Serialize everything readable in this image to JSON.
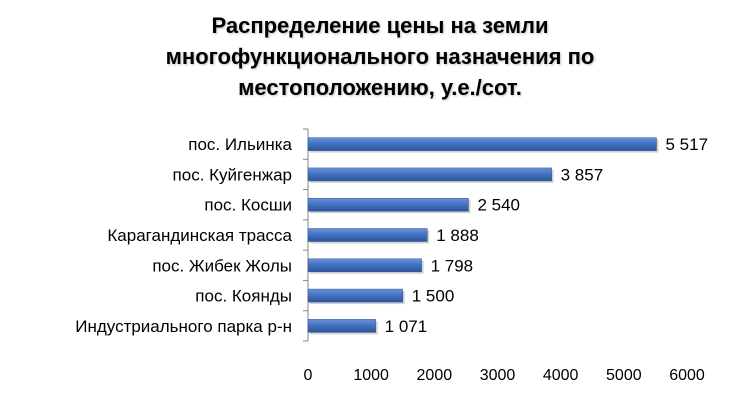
{
  "chart_data": {
    "type": "bar",
    "orientation": "horizontal",
    "title_lines": [
      "Распределение цены на земли",
      "многофункционального назначения по",
      "местоположению, у.е./сот."
    ],
    "categories": [
      "пос. Ильинка",
      "пос. Куйгенжар",
      "пос. Косши",
      "Карагандинская трасса",
      "пос. Жибек Жолы",
      "пос. Коянды",
      "Индустриального парка р-н"
    ],
    "values": [
      5517,
      3857,
      2540,
      1888,
      1798,
      1500,
      1071
    ],
    "value_labels": [
      "5 517",
      "3 857",
      "2 540",
      "1 888",
      "1 798",
      "1 500",
      "1 071"
    ],
    "xlim": [
      0,
      6000
    ],
    "xticks": [
      0,
      1000,
      2000,
      3000,
      4000,
      5000,
      6000
    ],
    "xtick_labels": [
      "0",
      "1000",
      "2000",
      "3000",
      "4000",
      "5000",
      "6000"
    ],
    "xlabel": "",
    "ylabel": "",
    "grid": false,
    "legend": "none",
    "bar_color": "#4472C4",
    "bar_color_dark": "#2E5597",
    "axis_color": "#868686"
  }
}
